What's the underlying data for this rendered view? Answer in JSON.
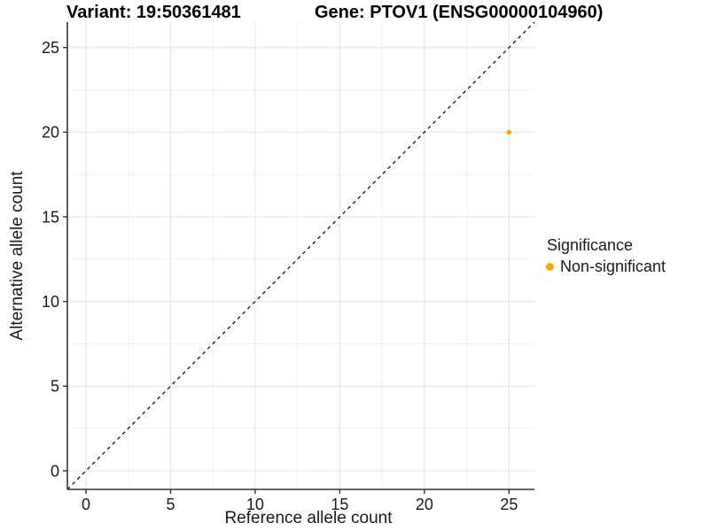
{
  "chart_data": {
    "type": "scatter",
    "titles": {
      "left": "Variant: 19:50361481",
      "right": "Gene: PTOV1 (ENSG00000104960)"
    },
    "xlabel": "Reference allele count",
    "ylabel": "Alternative allele count",
    "xlim": [
      -1.1,
      26.5
    ],
    "ylim": [
      -1.1,
      26.5
    ],
    "x_ticks": [
      0,
      5,
      10,
      15,
      20,
      25
    ],
    "y_ticks": [
      0,
      5,
      10,
      15,
      20,
      25
    ],
    "x_minor_ticks": [
      2.5,
      7.5,
      12.5,
      17.5,
      22.5
    ],
    "y_minor_ticks": [
      2.5,
      7.5,
      12.5,
      17.5,
      22.5
    ],
    "grid": true,
    "identity_line": {
      "style": "dashed",
      "color": "#000000",
      "from": [
        -1.1,
        -1.1
      ],
      "to": [
        26.5,
        26.5
      ]
    },
    "series": [
      {
        "name": "Non-significant",
        "color": "#FFA500",
        "points": [
          {
            "x": 25,
            "y": 20
          }
        ]
      }
    ],
    "legend": {
      "title": "Significance",
      "position": "right",
      "entries": [
        {
          "label": "Non-significant",
          "color": "#FFA500"
        }
      ]
    },
    "colors": {
      "axis": "#333333",
      "tick": "#333333",
      "grid_major": "#E5E5E5",
      "grid_minor": "#F0F0F0",
      "text": "#1A1A1A",
      "background": "#FFFFFF"
    }
  }
}
